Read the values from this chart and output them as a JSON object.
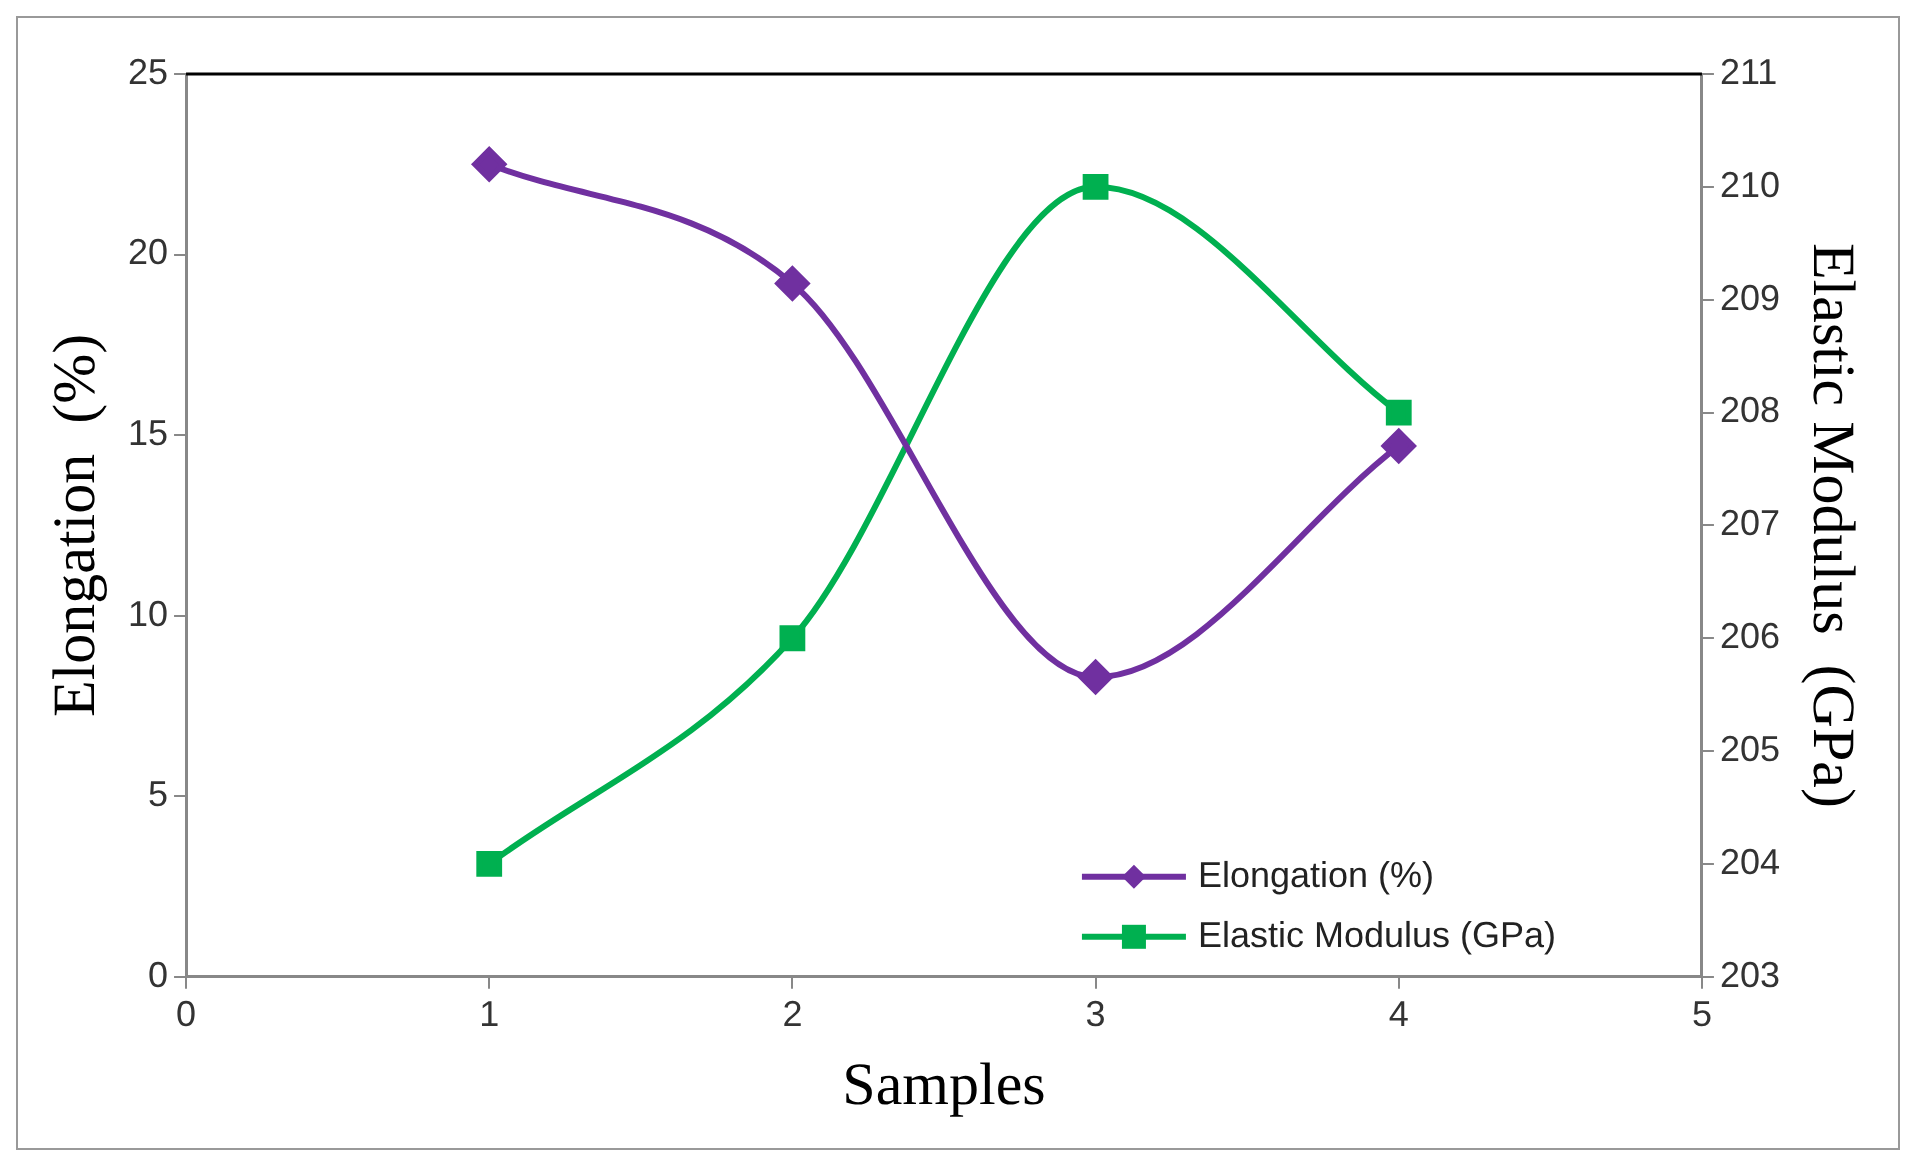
{
  "chart_data": {
    "type": "line",
    "xlabel": "Samples",
    "ylabel": "Elongation  (%)",
    "y2label": "Elastic Modulus  (GPa)",
    "x": [
      1,
      2,
      3,
      4
    ],
    "xlim": [
      0,
      5
    ],
    "xticks": [
      0,
      1,
      2,
      3,
      4,
      5
    ],
    "ylim": [
      0,
      25
    ],
    "yticks": [
      0,
      5,
      10,
      15,
      20,
      25
    ],
    "y2lim": [
      203,
      211
    ],
    "y2ticks": [
      203,
      204,
      205,
      206,
      207,
      208,
      209,
      210,
      211
    ],
    "grid": false,
    "legend": "bottom right",
    "series": [
      {
        "name": "Elongation (%)",
        "color": "#7030a0",
        "marker": "diamond",
        "values": [
          22.5,
          19.2,
          8.3,
          14.7
        ]
      },
      {
        "name": "Elastic Modulus (GPa)",
        "color": "#00b050",
        "marker": "square",
        "axis": "y2",
        "values": [
          204,
          206,
          210,
          208
        ]
      }
    ]
  }
}
